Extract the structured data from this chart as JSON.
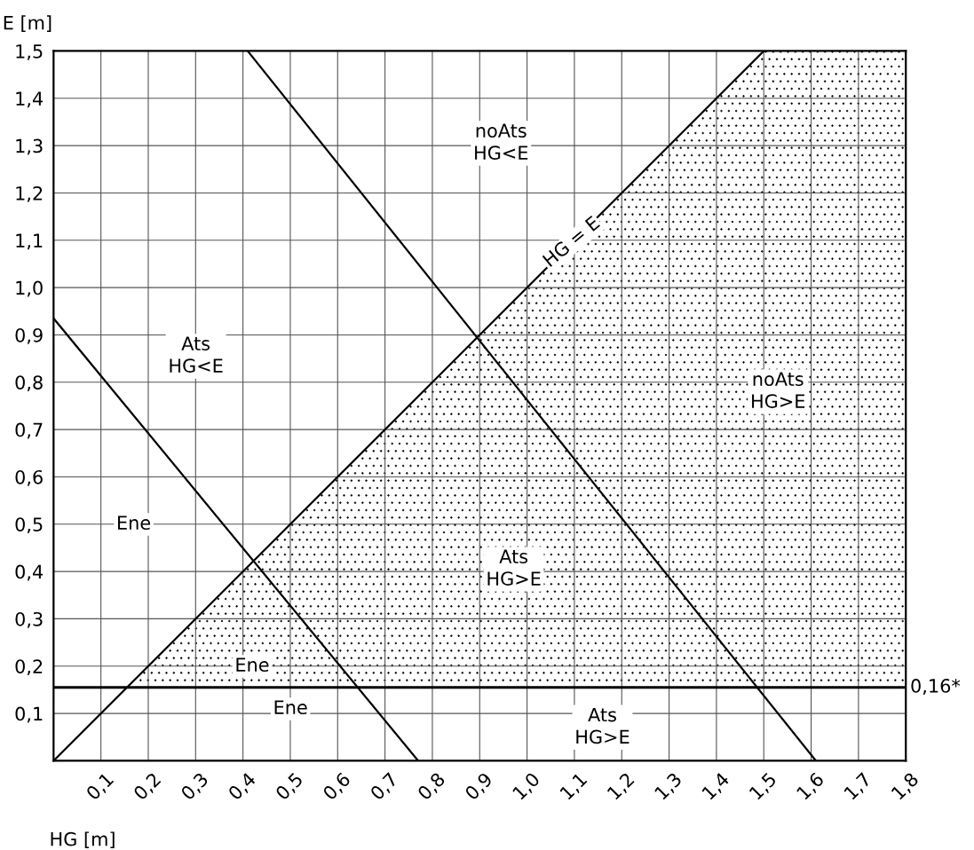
{
  "chart_data": {
    "type": "line",
    "xlabel": "HG [m]",
    "ylabel": "E [m]",
    "xlim": [
      0,
      1.8
    ],
    "ylim": [
      0,
      1.5
    ],
    "xticks": [
      {
        "value": 0.1,
        "label": "0,1"
      },
      {
        "value": 0.2,
        "label": "0,2"
      },
      {
        "value": 0.3,
        "label": "0,3"
      },
      {
        "value": 0.4,
        "label": "0,4"
      },
      {
        "value": 0.5,
        "label": "0,5"
      },
      {
        "value": 0.6,
        "label": "0,6"
      },
      {
        "value": 0.7,
        "label": "0,7"
      },
      {
        "value": 0.8,
        "label": "0,8"
      },
      {
        "value": 0.9,
        "label": "0,9"
      },
      {
        "value": 1.0,
        "label": "1,0"
      },
      {
        "value": 1.1,
        "label": "1,1"
      },
      {
        "value": 1.2,
        "label": "1,2"
      },
      {
        "value": 1.3,
        "label": "1,3"
      },
      {
        "value": 1.4,
        "label": "1,4"
      },
      {
        "value": 1.5,
        "label": "1,5"
      },
      {
        "value": 1.6,
        "label": "1,6"
      },
      {
        "value": 1.7,
        "label": "1,7"
      },
      {
        "value": 1.8,
        "label": "1,8"
      }
    ],
    "yticks": [
      {
        "value": 0.1,
        "label": "0,1"
      },
      {
        "value": 0.2,
        "label": "0,2"
      },
      {
        "value": 0.3,
        "label": "0,3"
      },
      {
        "value": 0.4,
        "label": "0,4"
      },
      {
        "value": 0.5,
        "label": "0,5"
      },
      {
        "value": 0.6,
        "label": "0,6"
      },
      {
        "value": 0.7,
        "label": "0,7"
      },
      {
        "value": 0.8,
        "label": "0,8"
      },
      {
        "value": 0.9,
        "label": "0,9"
      },
      {
        "value": 1.0,
        "label": "1,0"
      },
      {
        "value": 1.1,
        "label": "1,1"
      },
      {
        "value": 1.2,
        "label": "1,2"
      },
      {
        "value": 1.3,
        "label": "1,3"
      },
      {
        "value": 1.4,
        "label": "1,4"
      },
      {
        "value": 1.5,
        "label": "1,5"
      }
    ],
    "grid": true,
    "legend": false,
    "series": [
      {
        "type": "area",
        "color": "#000000",
        "x": [
          0.155,
          1.5,
          1.8
        ],
        "values": [
          0.155,
          1.5,
          1.5
        ]
      },
      {
        "name": "HG = E",
        "color": "#000000",
        "x": [
          0,
          1.5
        ],
        "values": [
          0,
          1.5
        ]
      },
      {
        "color": "#000000",
        "x": [
          0,
          0.77
        ],
        "values": [
          0.935,
          0
        ]
      },
      {
        "color": "#000000",
        "x": [
          0.41,
          1.61
        ],
        "values": [
          1.5,
          0
        ]
      }
    ],
    "ref_lines": [
      {
        "axis": "y",
        "value": 0.155,
        "label": "0,16*",
        "color": "#000000"
      }
    ],
    "annotations": [
      "noAts\nHG<E",
      "Ats\nHG<E",
      "noAts\nHG>E",
      "Ats\nHG>E",
      "Ene",
      "Ene",
      "Ene",
      "Ats\nHG>E"
    ]
  }
}
